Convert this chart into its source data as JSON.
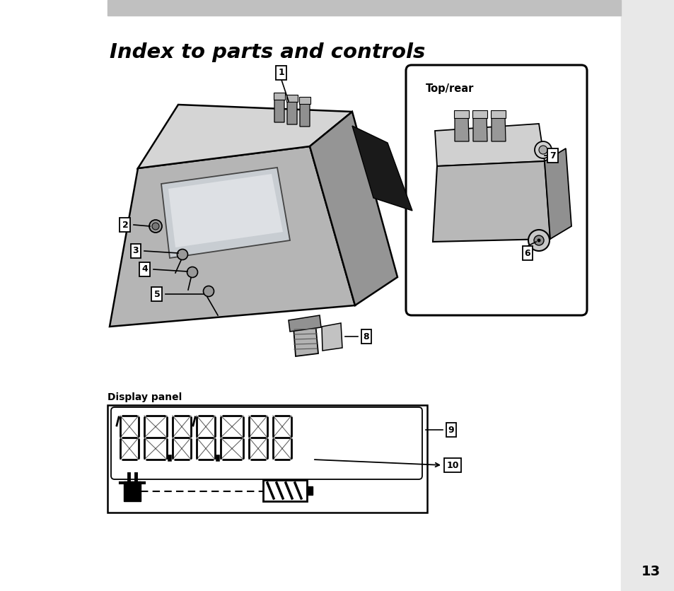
{
  "title": "Index to parts and controls",
  "title_fontsize": 21,
  "bg_color": "#ffffff",
  "header_bar_color": "#c0c0c0",
  "page_number": "13",
  "display_panel_label": "Display panel",
  "top_rear_label": "Top/rear",
  "right_sidebar_color": "#e8e8e8",
  "figure_width": 9.54,
  "figure_height": 8.36
}
